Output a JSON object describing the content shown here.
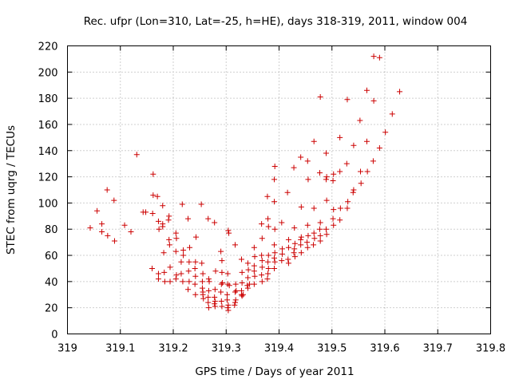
{
  "chart_data": {
    "type": "scatter",
    "title": "Rec. ufpr (Lon=310, Lat=-25, h=HE), days 318-319, 2011, window 004",
    "xlabel": "GPS time / Days of year 2011",
    "ylabel": "STEC from uqrg / TECUs",
    "xlim": [
      319,
      319.8
    ],
    "ylim": [
      0,
      220
    ],
    "xticks": [
      "319",
      "319.1",
      "319.2",
      "319.3",
      "319.4",
      "319.5",
      "319.6",
      "319.7",
      "319.8"
    ],
    "yticks": [
      "0",
      "20",
      "40",
      "60",
      "80",
      "100",
      "120",
      "140",
      "160",
      "180",
      "200",
      "220"
    ],
    "grid": true,
    "marker": "plus",
    "color": "#cc0000",
    "points": [
      [
        319.043,
        81
      ],
      [
        319.056,
        94
      ],
      [
        319.065,
        84
      ],
      [
        319.065,
        78
      ],
      [
        319.075,
        110
      ],
      [
        319.076,
        75
      ],
      [
        319.088,
        102
      ],
      [
        319.089,
        71
      ],
      [
        319.108,
        83
      ],
      [
        319.12,
        78
      ],
      [
        319.131,
        137
      ],
      [
        319.143,
        93
      ],
      [
        319.148,
        93
      ],
      [
        319.162,
        122
      ],
      [
        319.162,
        106
      ],
      [
        319.16,
        50
      ],
      [
        319.161,
        92
      ],
      [
        319.17,
        105
      ],
      [
        319.172,
        86
      ],
      [
        319.173,
        80
      ],
      [
        319.172,
        46
      ],
      [
        319.172,
        42
      ],
      [
        319.18,
        98
      ],
      [
        319.182,
        62
      ],
      [
        319.183,
        47
      ],
      [
        319.184,
        40
      ],
      [
        319.18,
        84
      ],
      [
        319.18,
        82
      ],
      [
        319.192,
        90
      ],
      [
        319.191,
        87
      ],
      [
        319.192,
        72
      ],
      [
        319.193,
        68
      ],
      [
        319.194,
        51
      ],
      [
        319.194,
        40
      ],
      [
        319.205,
        77
      ],
      [
        319.206,
        73
      ],
      [
        319.205,
        63
      ],
      [
        319.206,
        45
      ],
      [
        319.205,
        42
      ],
      [
        319.217,
        99
      ],
      [
        319.219,
        64
      ],
      [
        319.219,
        60
      ],
      [
        319.215,
        55
      ],
      [
        319.215,
        46
      ],
      [
        319.218,
        40
      ],
      [
        319.228,
        88
      ],
      [
        319.231,
        66
      ],
      [
        319.23,
        55
      ],
      [
        319.229,
        48
      ],
      [
        319.23,
        40
      ],
      [
        319.228,
        34
      ],
      [
        319.243,
        74
      ],
      [
        319.242,
        55
      ],
      [
        319.241,
        50
      ],
      [
        319.242,
        44
      ],
      [
        319.241,
        38
      ],
      [
        319.242,
        30
      ],
      [
        319.254,
        54
      ],
      [
        319.256,
        46
      ],
      [
        319.255,
        40
      ],
      [
        319.255,
        35
      ],
      [
        319.256,
        32
      ],
      [
        319.256,
        30
      ],
      [
        319.257,
        27
      ],
      [
        319.267,
        42
      ],
      [
        319.268,
        40
      ],
      [
        319.267,
        33
      ],
      [
        319.266,
        28
      ],
      [
        319.266,
        24
      ],
      [
        319.267,
        20
      ],
      [
        319.278,
        85
      ],
      [
        319.279,
        34
      ],
      [
        319.278,
        28
      ],
      [
        319.279,
        25
      ],
      [
        319.278,
        23
      ],
      [
        319.279,
        21
      ],
      [
        319.29,
        63
      ],
      [
        319.292,
        56
      ],
      [
        319.292,
        47
      ],
      [
        319.291,
        38
      ],
      [
        319.29,
        32
      ],
      [
        319.291,
        25
      ],
      [
        319.292,
        21
      ],
      [
        319.304,
        79
      ],
      [
        319.305,
        77
      ],
      [
        319.303,
        46
      ],
      [
        319.303,
        38
      ],
      [
        319.302,
        30
      ],
      [
        319.302,
        26
      ],
      [
        319.304,
        22
      ],
      [
        319.303,
        20
      ],
      [
        319.304,
        18
      ],
      [
        319.317,
        68
      ],
      [
        319.318,
        38
      ],
      [
        319.317,
        32
      ],
      [
        319.318,
        26
      ],
      [
        319.317,
        24
      ],
      [
        319.316,
        22
      ],
      [
        319.329,
        57
      ],
      [
        319.33,
        47
      ],
      [
        319.33,
        39
      ],
      [
        319.329,
        33
      ],
      [
        319.329,
        30
      ],
      [
        319.33,
        29
      ],
      [
        319.341,
        54
      ],
      [
        319.342,
        49
      ],
      [
        319.341,
        43
      ],
      [
        319.34,
        37
      ],
      [
        319.341,
        35
      ],
      [
        319.353,
        66
      ],
      [
        319.354,
        59
      ],
      [
        319.353,
        52
      ],
      [
        319.353,
        48
      ],
      [
        319.354,
        44
      ],
      [
        319.353,
        38
      ],
      [
        319.367,
        84
      ],
      [
        319.368,
        73
      ],
      [
        319.367,
        60
      ],
      [
        319.368,
        56
      ],
      [
        319.368,
        51
      ],
      [
        319.367,
        45
      ],
      [
        319.368,
        40
      ],
      [
        319.378,
        105
      ],
      [
        319.379,
        88
      ],
      [
        319.38,
        82
      ],
      [
        319.38,
        60
      ],
      [
        319.379,
        55
      ],
      [
        319.38,
        50
      ],
      [
        319.379,
        46
      ],
      [
        319.378,
        42
      ],
      [
        319.392,
        128
      ],
      [
        319.391,
        118
      ],
      [
        319.391,
        101
      ],
      [
        319.392,
        80
      ],
      [
        319.391,
        68
      ],
      [
        319.392,
        62
      ],
      [
        319.391,
        58
      ],
      [
        319.392,
        55
      ],
      [
        319.391,
        50
      ],
      [
        319.405,
        85
      ],
      [
        319.406,
        65
      ],
      [
        319.406,
        61
      ],
      [
        319.405,
        56
      ],
      [
        319.416,
        108
      ],
      [
        319.418,
        72
      ],
      [
        319.418,
        66
      ],
      [
        319.417,
        57
      ],
      [
        319.418,
        54
      ],
      [
        319.428,
        127
      ],
      [
        319.429,
        81
      ],
      [
        319.43,
        69
      ],
      [
        319.429,
        65
      ],
      [
        319.428,
        62
      ],
      [
        319.43,
        59
      ],
      [
        319.441,
        135
      ],
      [
        319.442,
        97
      ],
      [
        319.442,
        74
      ],
      [
        319.441,
        72
      ],
      [
        319.441,
        68
      ],
      [
        319.442,
        62
      ],
      [
        319.454,
        132
      ],
      [
        319.455,
        118
      ],
      [
        319.454,
        83
      ],
      [
        319.455,
        75
      ],
      [
        319.453,
        70
      ],
      [
        319.454,
        66
      ],
      [
        319.466,
        147
      ],
      [
        319.466,
        96
      ],
      [
        319.466,
        77
      ],
      [
        319.467,
        73
      ],
      [
        319.465,
        68
      ],
      [
        319.478,
        181
      ],
      [
        319.477,
        123
      ],
      [
        319.478,
        85
      ],
      [
        319.477,
        80
      ],
      [
        319.478,
        75
      ],
      [
        319.478,
        71
      ],
      [
        319.489,
        138
      ],
      [
        319.49,
        120
      ],
      [
        319.489,
        118
      ],
      [
        319.49,
        102
      ],
      [
        319.489,
        80
      ],
      [
        319.49,
        76
      ],
      [
        319.503,
        122
      ],
      [
        319.502,
        117
      ],
      [
        319.503,
        95
      ],
      [
        319.502,
        88
      ],
      [
        319.503,
        83
      ],
      [
        319.515,
        150
      ],
      [
        319.515,
        124
      ],
      [
        319.516,
        96
      ],
      [
        319.515,
        87
      ],
      [
        319.529,
        179
      ],
      [
        319.528,
        130
      ],
      [
        319.53,
        101
      ],
      [
        319.529,
        96
      ],
      [
        319.541,
        144
      ],
      [
        319.541,
        110
      ],
      [
        319.54,
        108
      ],
      [
        319.553,
        163
      ],
      [
        319.554,
        124
      ],
      [
        319.555,
        115
      ],
      [
        319.566,
        186
      ],
      [
        319.566,
        147
      ],
      [
        319.567,
        124
      ],
      [
        319.579,
        212
      ],
      [
        319.579,
        178
      ],
      [
        319.578,
        132
      ],
      [
        319.59,
        211
      ],
      [
        319.59,
        142
      ],
      [
        319.601,
        154
      ],
      [
        319.614,
        168
      ],
      [
        319.628,
        185
      ],
      [
        319.253,
        99
      ],
      [
        319.266,
        88
      ],
      [
        319.28,
        48
      ],
      [
        319.293,
        39
      ],
      [
        319.306,
        37
      ],
      [
        319.319,
        33
      ],
      [
        319.332,
        30
      ],
      [
        319.344,
        38
      ]
    ]
  }
}
